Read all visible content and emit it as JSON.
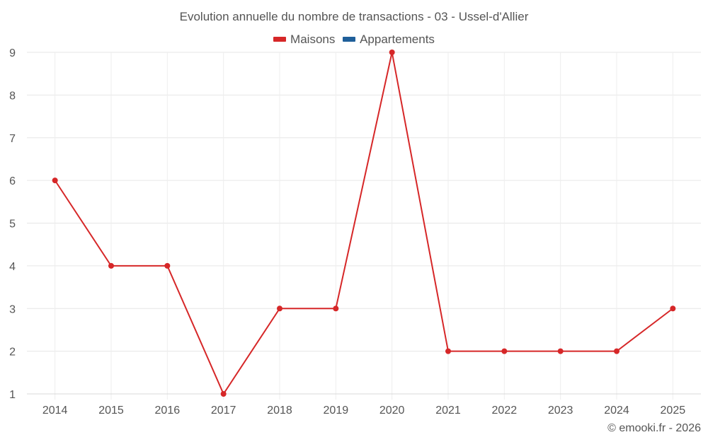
{
  "title": "Evolution annuelle du nombre de transactions - 03 - Ussel-d'Allier",
  "legend": [
    {
      "label": "Maisons",
      "color": "#d62728"
    },
    {
      "label": "Appartements",
      "color": "#1f5f9a"
    }
  ],
  "credit": "© emooki.fr - 2026",
  "chart_data": {
    "type": "line",
    "title": "Evolution annuelle du nombre de transactions - 03 - Ussel-d'Allier",
    "xlabel": "",
    "ylabel": "",
    "categories": [
      "2014",
      "2015",
      "2016",
      "2017",
      "2018",
      "2019",
      "2020",
      "2021",
      "2022",
      "2023",
      "2024",
      "2025"
    ],
    "series": [
      {
        "name": "Maisons",
        "color": "#d62728",
        "values": [
          6,
          4,
          4,
          1,
          3,
          3,
          9,
          2,
          2,
          2,
          2,
          3
        ]
      },
      {
        "name": "Appartements",
        "color": "#1f5f9a",
        "values": []
      }
    ],
    "ylim": [
      1,
      9
    ],
    "yticks": [
      1,
      2,
      3,
      4,
      5,
      6,
      7,
      8,
      9
    ],
    "grid": true,
    "legend_position": "top"
  }
}
